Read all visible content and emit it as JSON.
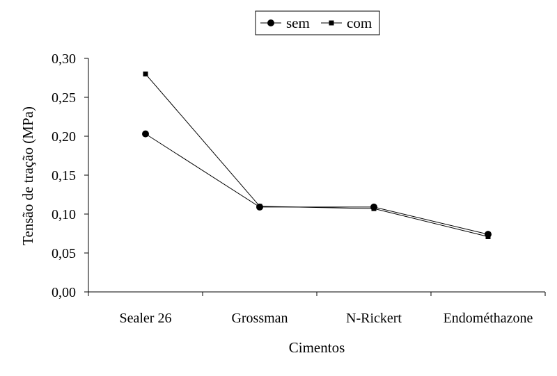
{
  "chart_data": {
    "type": "line",
    "title": "",
    "xlabel": "Cimentos",
    "ylabel": "Tensão de tração (MPa)",
    "categories": [
      "Sealer 26",
      "Grossman",
      "N-Rickert",
      "Endométhazone"
    ],
    "ylim": [
      0,
      0.3
    ],
    "yticks": [
      0,
      0.05,
      0.1,
      0.15,
      0.2,
      0.25,
      0.3
    ],
    "ytick_labels": [
      "0,00",
      "0,05",
      "0,10",
      "0,15",
      "0,20",
      "0,25",
      "0,30"
    ],
    "grid": false,
    "legend_position": "top-center",
    "series": [
      {
        "name": "sem",
        "marker": "circle",
        "color": "#000000",
        "values": [
          0.203,
          0.109,
          0.109,
          0.074
        ]
      },
      {
        "name": "com",
        "marker": "square",
        "color": "#000000",
        "values": [
          0.28,
          0.11,
          0.107,
          0.071
        ]
      }
    ]
  }
}
